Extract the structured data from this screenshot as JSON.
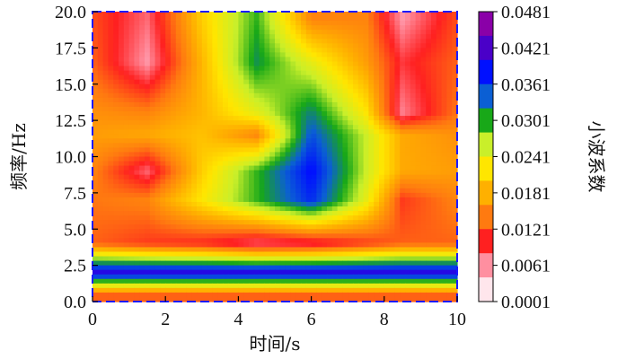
{
  "chart_data": {
    "type": "heatmap",
    "title": "",
    "xlabel": "时间/s",
    "ylabel": "频率/Hz",
    "colorbar_label": "小波系数",
    "xlim": [
      0,
      10
    ],
    "ylim": [
      0,
      20
    ],
    "x_ticks": [
      "0",
      "2",
      "4",
      "6",
      "8",
      "10"
    ],
    "y_ticks": [
      "0.0",
      "2.5",
      "5.0",
      "7.5",
      "10.0",
      "12.5",
      "15.0",
      "17.5",
      "20.0"
    ],
    "colorbar_ticks": [
      "0.0481",
      "0.0421",
      "0.0361",
      "0.0301",
      "0.0241",
      "0.0181",
      "0.0121",
      "0.0061",
      "0.0001"
    ],
    "colorbar_range": [
      0.0001,
      0.0481
    ],
    "colors": [
      "#ffe6ec",
      "#ff8fa0",
      "#ff2020",
      "#ff7a10",
      "#ffb000",
      "#ffe600",
      "#c9ef2a",
      "#18a818",
      "#0b5fd4",
      "#0010ff",
      "#4a00c8",
      "#8a00a8"
    ],
    "x": [
      0,
      1.5,
      3,
      4.5,
      6,
      7.5,
      8.5,
      10
    ],
    "y": [
      0.5,
      2,
      4,
      7,
      9,
      11.5,
      13,
      16.5,
      19.5
    ],
    "z": [
      [
        0.012,
        0.012,
        0.012,
        0.012,
        0.012,
        0.012,
        0.012,
        0.012
      ],
      [
        0.042,
        0.042,
        0.042,
        0.042,
        0.042,
        0.042,
        0.042,
        0.042
      ],
      [
        0.012,
        0.01,
        0.009,
        0.006,
        0.007,
        0.01,
        0.012,
        0.012
      ],
      [
        0.013,
        0.014,
        0.022,
        0.03,
        0.038,
        0.024,
        0.01,
        0.014
      ],
      [
        0.014,
        0.006,
        0.02,
        0.03,
        0.04,
        0.026,
        0.017,
        0.016
      ],
      [
        0.016,
        0.017,
        0.019,
        0.014,
        0.036,
        0.026,
        0.017,
        0.015
      ],
      [
        0.015,
        0.014,
        0.018,
        0.024,
        0.033,
        0.022,
        0.005,
        0.013
      ],
      [
        0.012,
        0.004,
        0.018,
        0.032,
        0.024,
        0.016,
        0.008,
        0.012
      ],
      [
        0.011,
        0.006,
        0.02,
        0.03,
        0.014,
        0.014,
        0.004,
        0.011
      ]
    ]
  }
}
